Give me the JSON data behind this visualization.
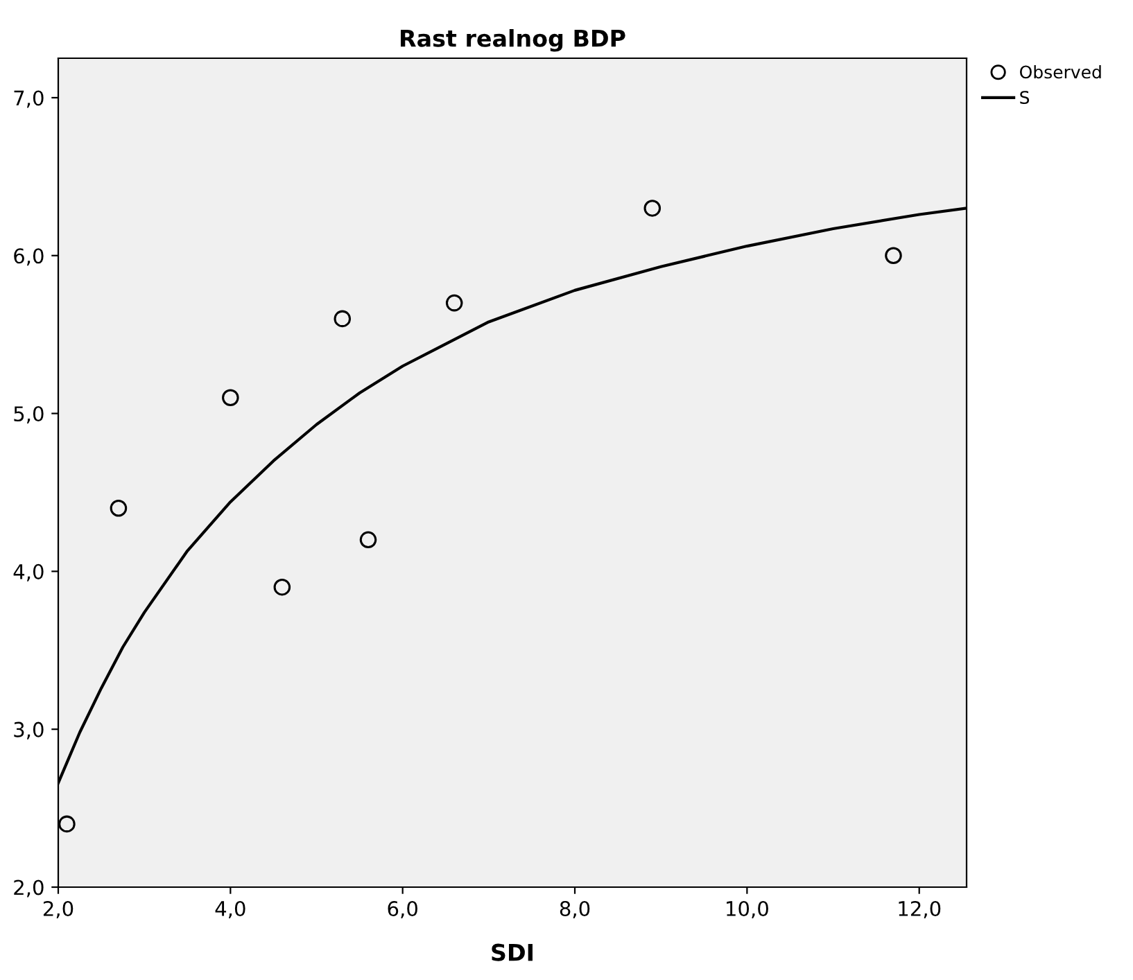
{
  "chart_data": {
    "type": "scatter",
    "title": "Rast realnog BDP",
    "xlabel": "SDI",
    "xlim": [
      2.0,
      12.55
    ],
    "ylim": [
      2.0,
      7.25
    ],
    "xticks": [
      {
        "value": 2,
        "label": "2,0"
      },
      {
        "value": 4,
        "label": "4,0"
      },
      {
        "value": 6,
        "label": "6,0"
      },
      {
        "value": 8,
        "label": "8,0"
      },
      {
        "value": 10,
        "label": "10,0"
      },
      {
        "value": 12,
        "label": "12,0"
      }
    ],
    "yticks": [
      {
        "value": 2,
        "label": "2,0"
      },
      {
        "value": 3,
        "label": "3,0"
      },
      {
        "value": 4,
        "label": "4,0"
      },
      {
        "value": 5,
        "label": "5,0"
      },
      {
        "value": 6,
        "label": "6,0"
      },
      {
        "value": 7,
        "label": "7,0"
      }
    ],
    "grid": false,
    "legend": "top right",
    "series": [
      {
        "name": "Observed",
        "marker": "circle",
        "color": "#000000",
        "x": [
          2.1,
          2.7,
          4.0,
          4.6,
          5.3,
          5.6,
          6.6,
          8.9,
          11.7
        ],
        "values": [
          2.4,
          4.4,
          5.1,
          3.9,
          5.6,
          4.2,
          5.7,
          6.3,
          6.0
        ]
      },
      {
        "name": "S",
        "type": "line",
        "marker": "none",
        "line_style": "solid",
        "color": "#000000",
        "x": [
          2.0,
          2.25,
          2.5,
          2.75,
          3.0,
          3.5,
          4.0,
          4.5,
          5.0,
          5.5,
          6.0,
          7.0,
          8.0,
          9.0,
          10.0,
          11.0,
          12.0,
          12.55
        ],
        "values": [
          2.66,
          2.98,
          3.26,
          3.52,
          3.74,
          4.13,
          4.44,
          4.7,
          4.93,
          5.13,
          5.3,
          5.58,
          5.78,
          5.93,
          6.06,
          6.17,
          6.26,
          6.3
        ]
      }
    ]
  }
}
